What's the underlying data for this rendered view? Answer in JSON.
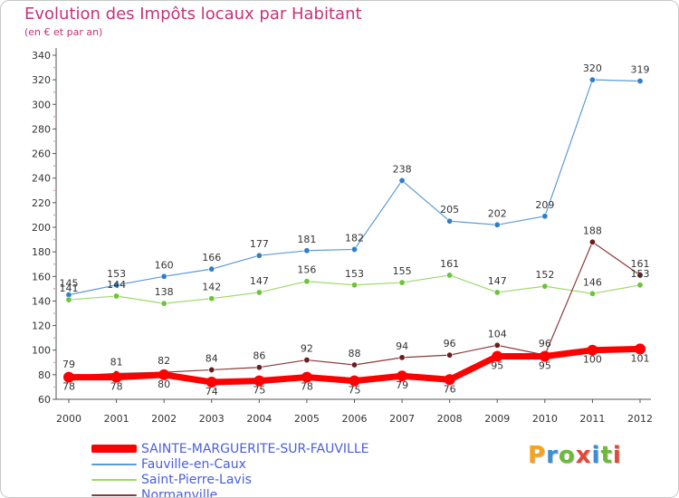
{
  "title": "Evolution des Impôts locaux par Habitant",
  "subtitle": "(en € et par an)",
  "brand": {
    "letters": [
      "P",
      "r",
      "o",
      "x",
      "i",
      "t",
      "i"
    ],
    "colors": [
      "#f7a21b",
      "#3a8fd6",
      "#6fb83a",
      "#e04a3a",
      "#3a8fd6",
      "#6fb83a",
      "#e04a3a"
    ]
  },
  "chart_data": {
    "type": "line",
    "x": [
      "2000",
      "2001",
      "2002",
      "2003",
      "2004",
      "2005",
      "2006",
      "2007",
      "2008",
      "2009",
      "2010",
      "2011",
      "2012"
    ],
    "ylim": [
      60,
      340
    ],
    "yticks": [
      60,
      80,
      100,
      120,
      140,
      160,
      180,
      200,
      220,
      240,
      260,
      280,
      300,
      320,
      340
    ],
    "grid": false,
    "legend_position": "bottom-left",
    "series": [
      {
        "name": "SAINTE-MARGUERITE-SUR-FAUVILLE",
        "color": "#ff0000",
        "marker": "#ff0000",
        "width": 7,
        "values": [
          78,
          78,
          80,
          74,
          75,
          78,
          75,
          79,
          76,
          95,
          95,
          100,
          101
        ],
        "labels": [
          "78",
          "78",
          "80",
          "74",
          "75",
          "78",
          "75",
          "79",
          "76",
          "95",
          "95",
          "100",
          "101"
        ]
      },
      {
        "name": "Fauville-en-Caux",
        "color": "#5b9bd5",
        "marker": "#2f7fc8",
        "width": 1.2,
        "values": [
          145,
          153,
          160,
          166,
          177,
          181,
          182,
          238,
          205,
          202,
          209,
          320,
          319
        ],
        "labels": [
          "145",
          "153",
          "160",
          "166",
          "177",
          "181",
          "182",
          "238",
          "205",
          "202",
          "209",
          "320",
          "319"
        ]
      },
      {
        "name": "Saint-Pierre-Lavis",
        "color": "#9ed86a",
        "marker": "#6cc43a",
        "width": 1.2,
        "values": [
          141,
          144,
          138,
          142,
          147,
          156,
          153,
          155,
          161,
          147,
          152,
          146,
          153
        ],
        "labels": [
          "141",
          "144",
          "138",
          "142",
          "147",
          "156",
          "153",
          "155",
          "161",
          "147",
          "152",
          "146",
          "153"
        ]
      },
      {
        "name": "Normanville",
        "color": "#8a3a3a",
        "marker": "#6b1c1c",
        "width": 1.2,
        "values": [
          79,
          81,
          82,
          84,
          86,
          92,
          88,
          94,
          96,
          104,
          96,
          188,
          161
        ],
        "labels": [
          "79",
          "81",
          "82",
          "84",
          "86",
          "92",
          "88",
          "94",
          "96",
          "104",
          "96",
          "188",
          "161"
        ]
      }
    ]
  }
}
